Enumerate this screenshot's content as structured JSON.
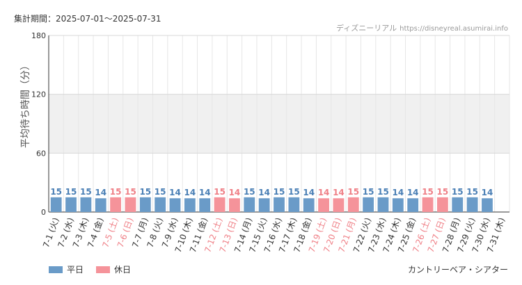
{
  "header": {
    "period": "集計期間：2025-07-01〜2025-07-31",
    "source_name": "ディズニーリアル",
    "source_url": "https://disneyreal.asumirai.info"
  },
  "footer": {
    "attraction": "カントリーベア・シアター"
  },
  "colors": {
    "weekday": "#6a9bc8",
    "holiday": "#f5939a",
    "weekday_text": "#4a7fb5",
    "holiday_text": "#ef7f86",
    "band": "#f0f0f0",
    "grid": "#e6e6e6"
  },
  "chart_data": {
    "type": "bar",
    "ylabel": "平均待ち時間（分）",
    "ylim": [
      0,
      180
    ],
    "yticks": [
      0,
      60,
      120,
      180
    ],
    "band": [
      60,
      120
    ],
    "legend": [
      "平日",
      "休日"
    ],
    "legend_position": "bottom-left",
    "categories": [
      "7-1 (火)",
      "7-2 (水)",
      "7-3 (木)",
      "7-4 (金)",
      "7-5 (土)",
      "7-6 (日)",
      "7-7 (月)",
      "7-8 (火)",
      "7-9 (水)",
      "7-10 (木)",
      "7-11 (金)",
      "7-12 (土)",
      "7-13 (日)",
      "7-14 (月)",
      "7-15 (火)",
      "7-16 (水)",
      "7-17 (木)",
      "7-18 (金)",
      "7-19 (土)",
      "7-20 (日)",
      "7-21 (月)",
      "7-22 (火)",
      "7-23 (水)",
      "7-24 (木)",
      "7-25 (金)",
      "7-26 (土)",
      "7-27 (日)",
      "7-28 (月)",
      "7-29 (火)",
      "7-30 (水)",
      "7-31 (木)"
    ],
    "values": [
      15,
      15,
      15,
      14,
      15,
      15,
      15,
      15,
      14,
      14,
      14,
      15,
      14,
      15,
      14,
      15,
      15,
      14,
      14,
      14,
      15,
      15,
      15,
      14,
      14,
      15,
      15,
      15,
      15,
      14,
      null
    ],
    "day_type": [
      "平日",
      "平日",
      "平日",
      "平日",
      "休日",
      "休日",
      "平日",
      "平日",
      "平日",
      "平日",
      "平日",
      "休日",
      "休日",
      "平日",
      "平日",
      "平日",
      "平日",
      "平日",
      "休日",
      "休日",
      "休日",
      "平日",
      "平日",
      "平日",
      "平日",
      "休日",
      "休日",
      "平日",
      "平日",
      "平日",
      "平日"
    ]
  }
}
